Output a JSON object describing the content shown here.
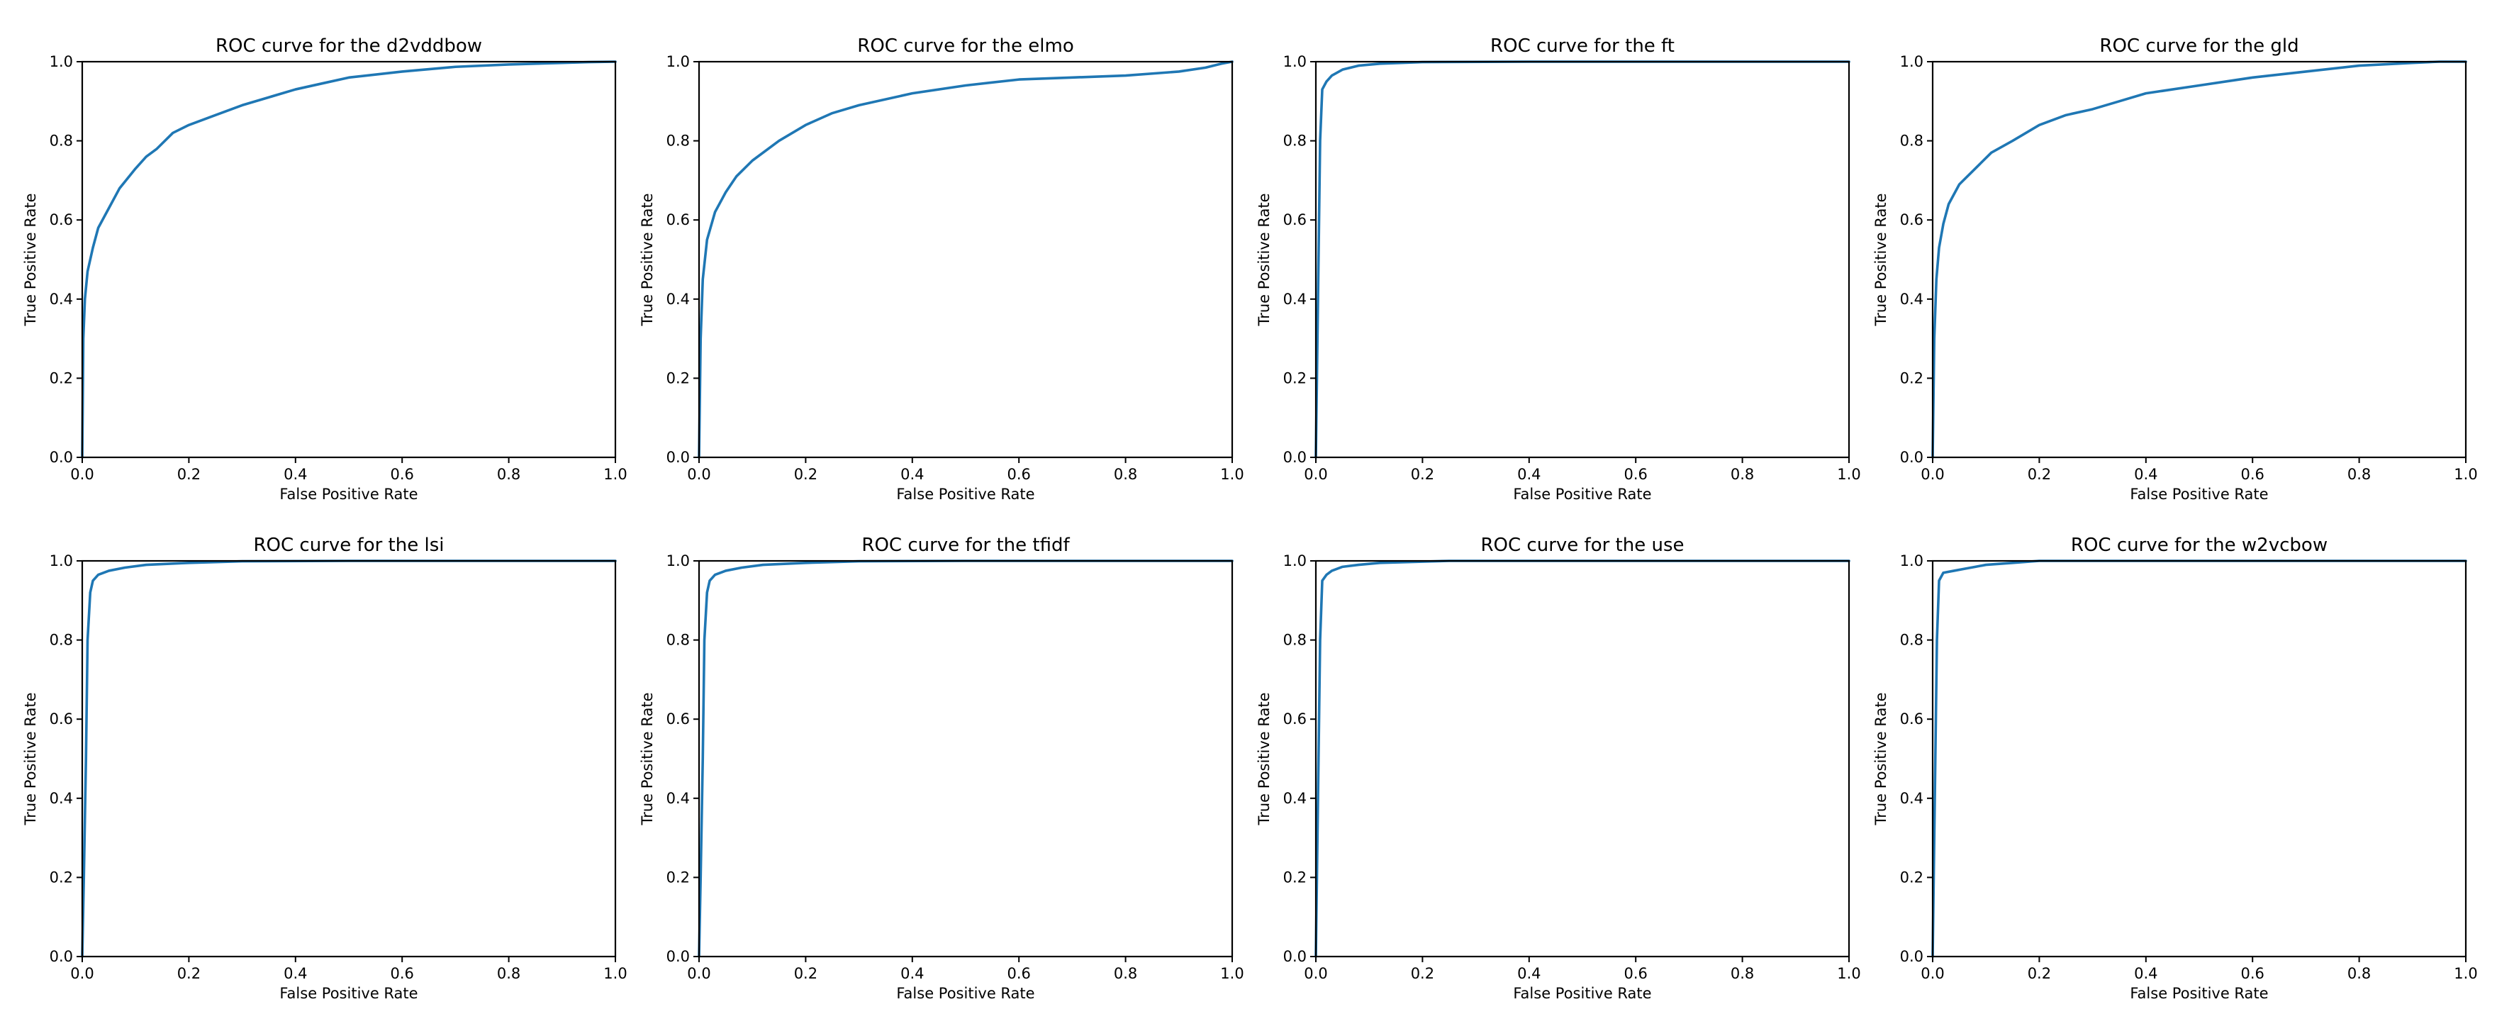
{
  "figure": {
    "line_color": "#1f77b4"
  },
  "chart_data": [
    {
      "type": "line",
      "title": "ROC curve for the d2vddbow",
      "xlabel": "False Positive Rate",
      "ylabel": "True Positive Rate",
      "xlim": [
        0,
        1
      ],
      "ylim": [
        0,
        1
      ],
      "xticks": [
        "0.0",
        "0.2",
        "0.4",
        "0.6",
        "0.8",
        "1.0"
      ],
      "yticks": [
        "0.0",
        "0.2",
        "0.4",
        "0.6",
        "0.8",
        "1.0"
      ],
      "grid": false,
      "series": [
        {
          "x": [
            0,
            0.002,
            0.005,
            0.01,
            0.02,
            0.03,
            0.05,
            0.07,
            0.1,
            0.12,
            0.14,
            0.17,
            0.2,
            0.25,
            0.3,
            0.35,
            0.4,
            0.45,
            0.5,
            0.6,
            0.7,
            0.8,
            0.9,
            0.95,
            1.0
          ],
          "y": [
            0,
            0.3,
            0.4,
            0.47,
            0.53,
            0.58,
            0.63,
            0.68,
            0.73,
            0.76,
            0.78,
            0.82,
            0.84,
            0.865,
            0.89,
            0.91,
            0.93,
            0.945,
            0.96,
            0.975,
            0.987,
            0.993,
            0.997,
            0.999,
            1.0
          ]
        }
      ]
    },
    {
      "type": "line",
      "title": "ROC curve for the elmo",
      "xlabel": "False Positive Rate",
      "ylabel": "True Positive Rate",
      "xlim": [
        0,
        1
      ],
      "ylim": [
        0,
        1
      ],
      "xticks": [
        "0.0",
        "0.2",
        "0.4",
        "0.6",
        "0.8",
        "1.0"
      ],
      "yticks": [
        "0.0",
        "0.2",
        "0.4",
        "0.6",
        "0.8",
        "1.0"
      ],
      "grid": false,
      "series": [
        {
          "x": [
            0,
            0.003,
            0.007,
            0.015,
            0.03,
            0.05,
            0.07,
            0.1,
            0.15,
            0.2,
            0.25,
            0.3,
            0.4,
            0.5,
            0.6,
            0.7,
            0.8,
            0.9,
            0.95,
            0.98,
            1.0
          ],
          "y": [
            0,
            0.3,
            0.45,
            0.55,
            0.62,
            0.67,
            0.71,
            0.75,
            0.8,
            0.84,
            0.87,
            0.89,
            0.92,
            0.94,
            0.955,
            0.96,
            0.965,
            0.975,
            0.985,
            0.995,
            1.0
          ]
        }
      ]
    },
    {
      "type": "line",
      "title": "ROC curve for the ft",
      "xlabel": "False Positive Rate",
      "ylabel": "True Positive Rate",
      "xlim": [
        0,
        1
      ],
      "ylim": [
        0,
        1
      ],
      "xticks": [
        "0.0",
        "0.2",
        "0.4",
        "0.6",
        "0.8",
        "1.0"
      ],
      "yticks": [
        "0.0",
        "0.2",
        "0.4",
        "0.6",
        "0.8",
        "1.0"
      ],
      "grid": false,
      "series": [
        {
          "x": [
            0,
            0.002,
            0.005,
            0.008,
            0.012,
            0.02,
            0.03,
            0.05,
            0.08,
            0.12,
            0.2,
            0.4,
            0.7,
            1.0
          ],
          "y": [
            0,
            0.2,
            0.5,
            0.8,
            0.93,
            0.95,
            0.965,
            0.98,
            0.99,
            0.995,
            0.999,
            1.0,
            1.0,
            1.0
          ]
        }
      ]
    },
    {
      "type": "line",
      "title": "ROC curve for the gld",
      "xlabel": "False Positive Rate",
      "ylabel": "True Positive Rate",
      "xlim": [
        0,
        1
      ],
      "ylim": [
        0,
        1
      ],
      "xticks": [
        "0.0",
        "0.2",
        "0.4",
        "0.6",
        "0.8",
        "1.0"
      ],
      "yticks": [
        "0.0",
        "0.2",
        "0.4",
        "0.6",
        "0.8",
        "1.0"
      ],
      "grid": false,
      "series": [
        {
          "x": [
            0,
            0.003,
            0.007,
            0.012,
            0.02,
            0.03,
            0.05,
            0.08,
            0.11,
            0.15,
            0.2,
            0.25,
            0.3,
            0.35,
            0.4,
            0.5,
            0.6,
            0.7,
            0.8,
            0.9,
            0.95,
            1.0
          ],
          "y": [
            0,
            0.3,
            0.45,
            0.53,
            0.59,
            0.64,
            0.69,
            0.73,
            0.77,
            0.8,
            0.84,
            0.865,
            0.88,
            0.9,
            0.92,
            0.94,
            0.96,
            0.975,
            0.99,
            0.997,
            1.0,
            1.0
          ]
        }
      ]
    },
    {
      "type": "line",
      "title": "ROC curve for the lsi",
      "xlabel": "False Positive Rate",
      "ylabel": "True Positive Rate",
      "xlim": [
        0,
        1
      ],
      "ylim": [
        0,
        1
      ],
      "xticks": [
        "0.0",
        "0.2",
        "0.4",
        "0.6",
        "0.8",
        "1.0"
      ],
      "yticks": [
        "0.0",
        "0.2",
        "0.4",
        "0.6",
        "0.8",
        "1.0"
      ],
      "grid": false,
      "series": [
        {
          "x": [
            0,
            0.003,
            0.007,
            0.01,
            0.015,
            0.02,
            0.03,
            0.05,
            0.08,
            0.12,
            0.2,
            0.3,
            0.5,
            0.8,
            1.0
          ],
          "y": [
            0,
            0.2,
            0.5,
            0.8,
            0.92,
            0.95,
            0.965,
            0.975,
            0.983,
            0.99,
            0.995,
            0.999,
            1.0,
            1.0,
            1.0
          ]
        }
      ]
    },
    {
      "type": "line",
      "title": "ROC curve for the tfidf",
      "xlabel": "False Positive Rate",
      "ylabel": "True Positive Rate",
      "xlim": [
        0,
        1
      ],
      "ylim": [
        0,
        1
      ],
      "xticks": [
        "0.0",
        "0.2",
        "0.4",
        "0.6",
        "0.8",
        "1.0"
      ],
      "yticks": [
        "0.0",
        "0.2",
        "0.4",
        "0.6",
        "0.8",
        "1.0"
      ],
      "grid": false,
      "series": [
        {
          "x": [
            0,
            0.003,
            0.007,
            0.01,
            0.015,
            0.02,
            0.03,
            0.05,
            0.08,
            0.12,
            0.2,
            0.3,
            0.5,
            0.8,
            1.0
          ],
          "y": [
            0,
            0.2,
            0.5,
            0.8,
            0.92,
            0.95,
            0.965,
            0.975,
            0.983,
            0.99,
            0.995,
            0.999,
            1.0,
            1.0,
            1.0
          ]
        }
      ]
    },
    {
      "type": "line",
      "title": "ROC curve for the use",
      "xlabel": "False Positive Rate",
      "ylabel": "True Positive Rate",
      "xlim": [
        0,
        1
      ],
      "ylim": [
        0,
        1
      ],
      "xticks": [
        "0.0",
        "0.2",
        "0.4",
        "0.6",
        "0.8",
        "1.0"
      ],
      "yticks": [
        "0.0",
        "0.2",
        "0.4",
        "0.6",
        "0.8",
        "1.0"
      ],
      "grid": false,
      "series": [
        {
          "x": [
            0,
            0.002,
            0.005,
            0.008,
            0.012,
            0.02,
            0.03,
            0.05,
            0.08,
            0.12,
            0.2,
            0.25,
            0.5,
            0.8,
            1.0
          ],
          "y": [
            0,
            0.2,
            0.5,
            0.8,
            0.95,
            0.965,
            0.975,
            0.985,
            0.99,
            0.995,
            0.998,
            1.0,
            1.0,
            1.0,
            1.0
          ]
        }
      ]
    },
    {
      "type": "line",
      "title": "ROC curve for the w2vcbow",
      "xlabel": "False Positive Rate",
      "ylabel": "True Positive Rate",
      "xlim": [
        0,
        1
      ],
      "ylim": [
        0,
        1
      ],
      "xticks": [
        "0.0",
        "0.2",
        "0.4",
        "0.6",
        "0.8",
        "1.0"
      ],
      "yticks": [
        "0.0",
        "0.2",
        "0.4",
        "0.6",
        "0.8",
        "1.0"
      ],
      "grid": false,
      "series": [
        {
          "x": [
            0,
            0.002,
            0.005,
            0.008,
            0.012,
            0.02,
            0.04,
            0.06,
            0.08,
            0.1,
            0.15,
            0.2,
            0.4,
            0.7,
            1.0
          ],
          "y": [
            0,
            0.2,
            0.5,
            0.8,
            0.95,
            0.97,
            0.975,
            0.98,
            0.985,
            0.99,
            0.995,
            1.0,
            1.0,
            1.0,
            1.0
          ]
        }
      ]
    }
  ]
}
